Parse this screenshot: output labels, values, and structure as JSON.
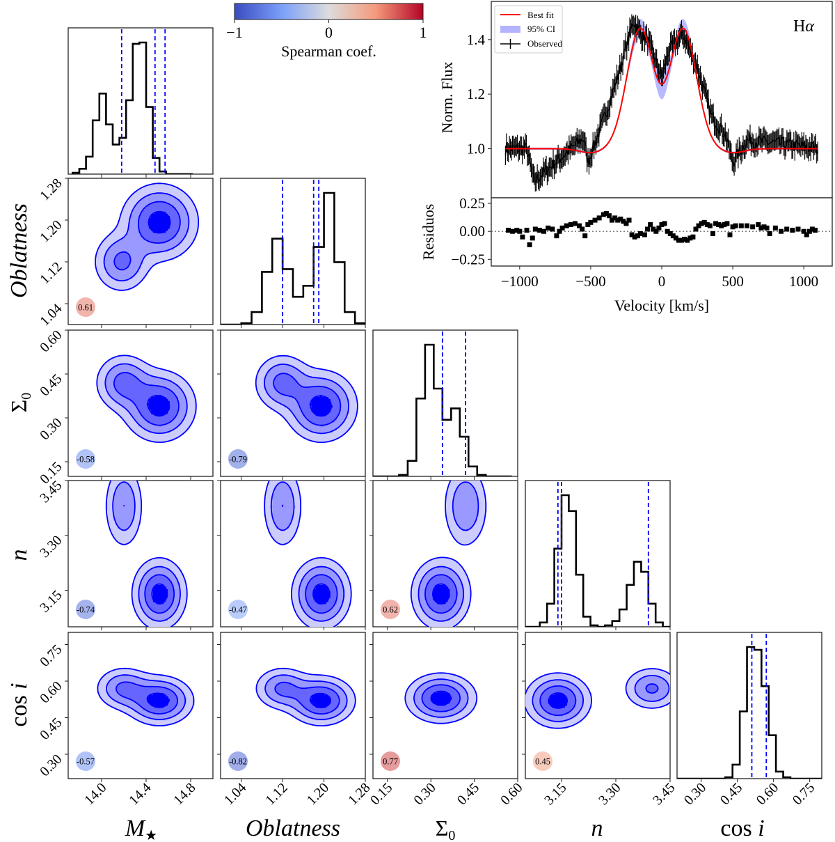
{
  "chart_data": {
    "type": "corner",
    "colorbar": {
      "label": "Spearman coef.",
      "ticks": [
        "−1",
        "0",
        "1"
      ],
      "range": [
        -1,
        1
      ],
      "colormap": "coolwarm",
      "low_color": "#3b4cc0",
      "mid_color": "#dddddd",
      "high_color": "#b40426"
    },
    "parameters": [
      {
        "key": "mstar",
        "label": "M★",
        "label_style": "italic",
        "range": [
          13.7,
          15.0
        ],
        "ticks": [
          14.0,
          14.4,
          14.8
        ],
        "tick_labels": [
          "14.0",
          "14.4",
          "14.8"
        ]
      },
      {
        "key": "oblatness",
        "label": "Oblatness",
        "label_style": "italic",
        "range": [
          1.0,
          1.28
        ],
        "ticks": [
          1.04,
          1.12,
          1.2,
          1.28
        ],
        "tick_labels": [
          "1.04",
          "1.12",
          "1.20",
          "1.28"
        ]
      },
      {
        "key": "sigma0",
        "label": "Σ0",
        "label_style": "normal",
        "range": [
          0.1,
          0.6
        ],
        "ticks": [
          0.15,
          0.3,
          0.45,
          0.6
        ],
        "tick_labels": [
          "0.15",
          "0.30",
          "0.45",
          "0.60"
        ]
      },
      {
        "key": "n",
        "label": "n",
        "label_style": "italic",
        "range": [
          3.05,
          3.45
        ],
        "ticks": [
          3.15,
          3.3,
          3.45
        ],
        "tick_labels": [
          "3.15",
          "3.30",
          "3.45"
        ]
      },
      {
        "key": "cosi",
        "label": "cos i",
        "label_style": "normal",
        "range": [
          0.2,
          0.8
        ],
        "ticks": [
          0.3,
          0.45,
          0.6,
          0.75
        ],
        "tick_labels": [
          "0.30",
          "0.45",
          "0.60",
          "0.75"
        ]
      }
    ],
    "histograms": [
      {
        "param": "mstar",
        "bin_edges": [
          13.74,
          13.8,
          13.86,
          13.92,
          13.98,
          14.04,
          14.1,
          14.16,
          14.22,
          14.28,
          14.34,
          14.4,
          14.46,
          14.52,
          14.58,
          14.64,
          14.7,
          14.76,
          14.82
        ],
        "counts": [
          0.01,
          0.04,
          0.13,
          0.4,
          0.6,
          0.37,
          0.22,
          0.27,
          0.55,
          0.97,
          0.98,
          0.5,
          0.12,
          0.02,
          0.0,
          0,
          0,
          0
        ],
        "lines": [
          14.18,
          14.48,
          14.57
        ]
      },
      {
        "param": "oblatness",
        "bin_edges": [
          1.0,
          1.02,
          1.04,
          1.06,
          1.08,
          1.1,
          1.12,
          1.14,
          1.16,
          1.18,
          1.2,
          1.22,
          1.24,
          1.26,
          1.28
        ],
        "counts": [
          0.0,
          0.0,
          0.01,
          0.09,
          0.38,
          0.62,
          0.4,
          0.2,
          0.28,
          0.56,
          0.95,
          0.45,
          0.09,
          0.01
        ],
        "lines": [
          1.12,
          1.18,
          1.19
        ]
      },
      {
        "param": "sigma0",
        "bin_edges": [
          0.1,
          0.13,
          0.16,
          0.19,
          0.22,
          0.25,
          0.28,
          0.31,
          0.34,
          0.37,
          0.4,
          0.43,
          0.46,
          0.49,
          0.52,
          0.55,
          0.58
        ],
        "counts": [
          0,
          0,
          0,
          0.01,
          0.11,
          0.55,
          0.93,
          0.62,
          0.4,
          0.48,
          0.28,
          0.07,
          0.01,
          0,
          0,
          0
        ],
        "lines": [
          0.34,
          0.42
        ]
      },
      {
        "param": "n",
        "bin_edges": [
          3.05,
          3.07,
          3.09,
          3.11,
          3.13,
          3.15,
          3.17,
          3.19,
          3.21,
          3.23,
          3.25,
          3.27,
          3.29,
          3.31,
          3.33,
          3.35,
          3.37,
          3.39,
          3.41,
          3.43,
          3.45
        ],
        "counts": [
          0,
          0,
          0.03,
          0.16,
          0.54,
          0.91,
          0.8,
          0.36,
          0.07,
          0.01,
          0,
          0.01,
          0.04,
          0.12,
          0.29,
          0.45,
          0.38,
          0.16,
          0.03,
          0
        ],
        "lines": [
          3.14,
          3.15,
          3.39
        ]
      },
      {
        "param": "cosi",
        "bin_edges": [
          0.2,
          0.25,
          0.3,
          0.35,
          0.4,
          0.43,
          0.46,
          0.49,
          0.52,
          0.55,
          0.58,
          0.61,
          0.64,
          0.67,
          0.7,
          0.8
        ],
        "counts": [
          0,
          0,
          0,
          0,
          0.01,
          0.1,
          0.48,
          0.94,
          0.92,
          0.66,
          0.31,
          0.05,
          0.01,
          0,
          0
        ],
        "lines": [
          0.51,
          0.57
        ]
      }
    ],
    "pairs": [
      {
        "x": "mstar",
        "y": "oblatness",
        "spearman": 0.61,
        "modes": [
          {
            "cx": 14.52,
            "cy": 1.196,
            "sx": 0.17,
            "sy": 0.036,
            "w": 1.0
          },
          {
            "cx": 14.18,
            "cy": 1.12,
            "sx": 0.13,
            "sy": 0.03,
            "w": 0.62
          }
        ]
      },
      {
        "x": "mstar",
        "y": "sigma0",
        "spearman": -0.58,
        "modes": [
          {
            "cx": 14.52,
            "cy": 0.34,
            "sx": 0.16,
            "sy": 0.06,
            "w": 1.0
          },
          {
            "cx": 14.2,
            "cy": 0.42,
            "sx": 0.13,
            "sy": 0.05,
            "w": 0.68
          }
        ]
      },
      {
        "x": "mstar",
        "y": "n",
        "spearman": -0.74,
        "modes": [
          {
            "cx": 14.52,
            "cy": 3.14,
            "sx": 0.12,
            "sy": 0.048,
            "w": 1.0
          },
          {
            "cx": 14.2,
            "cy": 3.38,
            "sx": 0.09,
            "sy": 0.06,
            "w": 0.55
          }
        ]
      },
      {
        "x": "mstar",
        "y": "cosi",
        "spearman": -0.57,
        "modes": [
          {
            "cx": 14.52,
            "cy": 0.52,
            "sx": 0.15,
            "sy": 0.05,
            "w": 1.0
          },
          {
            "cx": 14.2,
            "cy": 0.57,
            "sx": 0.13,
            "sy": 0.045,
            "w": 0.62
          }
        ]
      },
      {
        "x": "oblatness",
        "y": "sigma0",
        "spearman": -0.79,
        "modes": [
          {
            "cx": 1.195,
            "cy": 0.34,
            "sx": 0.034,
            "sy": 0.06,
            "w": 1.0
          },
          {
            "cx": 1.12,
            "cy": 0.42,
            "sx": 0.028,
            "sy": 0.05,
            "w": 0.66
          }
        ]
      },
      {
        "x": "oblatness",
        "y": "n",
        "spearman": -0.47,
        "modes": [
          {
            "cx": 1.195,
            "cy": 3.14,
            "sx": 0.028,
            "sy": 0.048,
            "w": 1.0
          },
          {
            "cx": 1.12,
            "cy": 3.38,
            "sx": 0.02,
            "sy": 0.06,
            "w": 0.55
          }
        ]
      },
      {
        "x": "oblatness",
        "y": "cosi",
        "spearman": -0.82,
        "modes": [
          {
            "cx": 1.195,
            "cy": 0.52,
            "sx": 0.032,
            "sy": 0.05,
            "w": 1.0
          },
          {
            "cx": 1.12,
            "cy": 0.57,
            "sx": 0.028,
            "sy": 0.045,
            "w": 0.62
          }
        ]
      },
      {
        "x": "sigma0",
        "y": "n",
        "spearman": 0.62,
        "modes": [
          {
            "cx": 0.335,
            "cy": 3.14,
            "sx": 0.05,
            "sy": 0.048,
            "w": 1.0
          },
          {
            "cx": 0.42,
            "cy": 3.38,
            "sx": 0.04,
            "sy": 0.06,
            "w": 0.55
          }
        ]
      },
      {
        "x": "sigma0",
        "y": "cosi",
        "spearman": 0.77,
        "modes": [
          {
            "cx": 0.335,
            "cy": 0.53,
            "sx": 0.06,
            "sy": 0.05,
            "w": 1.0
          }
        ]
      },
      {
        "x": "n",
        "y": "cosi",
        "spearman": 0.45,
        "modes": [
          {
            "cx": 3.14,
            "cy": 0.52,
            "sx": 0.045,
            "sy": 0.055,
            "w": 1.0
          },
          {
            "cx": 3.4,
            "cy": 0.57,
            "sx": 0.04,
            "sy": 0.045,
            "w": 0.6
          }
        ]
      }
    ],
    "contour_levels": [
      0.12,
      0.3,
      0.55,
      0.85
    ],
    "contour_color": "#0000ff",
    "spectrum": {
      "title": "Hα",
      "ylabel": "Norm. Flux",
      "xlim": [
        -1200,
        1200
      ],
      "ylim": [
        0.82,
        1.54
      ],
      "yticks": [
        1.0,
        1.2,
        1.4
      ],
      "ytick_labels": [
        "1.0",
        "1.2",
        "1.4"
      ],
      "legend": [
        {
          "label": "Best fit",
          "style": "line",
          "color": "#ff0000"
        },
        {
          "label": "95% CI",
          "style": "patch",
          "color": "#8080ff"
        },
        {
          "label": "Observed",
          "style": "errorbar",
          "color": "#000000"
        }
      ],
      "legend_loc": "upper left",
      "model_peaks": {
        "v1": -150,
        "v2": 150,
        "peak": 1.44,
        "dip": 1.26,
        "width": 95
      },
      "observed_profile": {
        "v": [
          -1100,
          -950,
          -900,
          -550,
          -520,
          -400,
          -300,
          -200,
          -150,
          -100,
          0,
          50,
          150,
          250,
          350,
          450,
          500,
          600,
          800,
          1100
        ],
        "flux": [
          1.0,
          1.0,
          0.88,
          1.04,
          0.95,
          1.12,
          1.28,
          1.47,
          1.42,
          1.4,
          1.26,
          1.36,
          1.42,
          1.3,
          1.12,
          1.05,
          0.95,
          1.03,
          1.02,
          1.0
        ]
      }
    },
    "residuals": {
      "ylabel": "Residuos",
      "xlabel": "Velocity [km/s]",
      "xlim": [
        -1200,
        1200
      ],
      "ylim": [
        -0.31,
        0.3
      ],
      "yticks": [
        0.25,
        0.0,
        -0.25
      ],
      "ytick_labels": [
        "0.25",
        "0.00",
        "−0.25"
      ],
      "xticks": [
        -1000,
        -500,
        0,
        500,
        1000
      ],
      "xtick_labels": [
        "−1000",
        "−500",
        "0",
        "500",
        "1000"
      ],
      "zero_line": "dotted",
      "v": [
        -1080,
        -1050,
        -1020,
        -1000,
        -980,
        -950,
        -930,
        -910,
        -890,
        -860,
        -830,
        -800,
        -770,
        -740,
        -720,
        -700,
        -670,
        -640,
        -610,
        -580,
        -560,
        -540,
        -520,
        -500,
        -470,
        -440,
        -410,
        -390,
        -370,
        -350,
        -330,
        -310,
        -290,
        -270,
        -250,
        -230,
        -210,
        -190,
        -170,
        -150,
        -120,
        -100,
        -80,
        -60,
        -40,
        -20,
        0,
        20,
        40,
        60,
        80,
        100,
        120,
        140,
        160,
        180,
        200,
        220,
        240,
        260,
        280,
        300,
        320,
        340,
        360,
        380,
        400,
        420,
        440,
        460,
        480,
        500,
        520,
        560,
        600,
        640,
        680,
        700,
        720,
        740,
        760,
        800,
        840,
        880,
        920,
        960,
        1000,
        1020,
        1040,
        1060,
        1080
      ],
      "r": [
        0.01,
        0.0,
        0.01,
        0.0,
        -0.05,
        0.01,
        -0.12,
        -0.06,
        0.02,
        0.01,
        0.0,
        0.03,
        0.02,
        -0.04,
        0.0,
        0.03,
        0.05,
        0.06,
        0.07,
        0.05,
        0.02,
        -0.04,
        0.06,
        0.08,
        0.1,
        0.12,
        0.15,
        0.16,
        0.14,
        0.1,
        0.12,
        0.1,
        0.11,
        0.09,
        0.07,
        0.1,
        -0.03,
        -0.05,
        -0.04,
        -0.02,
        -0.03,
        0.02,
        0.06,
        0.02,
        0.0,
        0.03,
        0.06,
        0.07,
        0.0,
        -0.02,
        -0.04,
        -0.06,
        -0.08,
        -0.08,
        -0.07,
        -0.08,
        -0.06,
        -0.05,
        0.02,
        0.05,
        0.07,
        0.08,
        0.06,
        0.05,
        -0.02,
        0.07,
        0.06,
        0.05,
        0.06,
        0.07,
        -0.03,
        0.04,
        0.05,
        0.05,
        0.05,
        0.04,
        0.06,
        0.03,
        0.04,
        0.03,
        -0.02,
        0.03,
        0.0,
        0.02,
        0.01,
        0.02,
        0.0,
        -0.03,
        0.0,
        0.02,
        0.01
      ]
    }
  }
}
